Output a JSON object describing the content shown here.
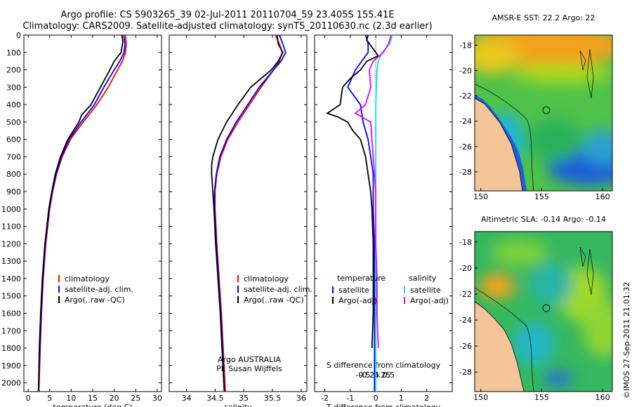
{
  "header": {
    "line1": "Argo profile: CS 5903265_39 02-Jul-2011 20110704_59 23.405S 155.41E",
    "line2": "Climatology: CARS2009. Satellite-adjusted climatology: synTS_20110630.nc (2.3d earlier)"
  },
  "colors": {
    "climatology": "#ff0000",
    "satellite": "#0000ff",
    "argo": "#000000",
    "sal_satellite": "#00e5ee",
    "sal_argo": "#ee00ee",
    "land": "#f5c59a"
  },
  "chart_data": [
    {
      "type": "line",
      "xlabel": "temperature (deg C)",
      "xlim": [
        -1,
        31
      ],
      "xticks": [
        0,
        5,
        10,
        15,
        20,
        25,
        30
      ],
      "ylim": [
        2050,
        0
      ],
      "yticks": [
        0,
        100,
        200,
        300,
        400,
        500,
        600,
        700,
        800,
        900,
        1000,
        1100,
        1200,
        1300,
        1400,
        1500,
        1600,
        1700,
        1800,
        1900,
        2000
      ],
      "legend": [
        "climatology",
        "satellite-adj. clim.",
        "Argo(..raw -QC)"
      ],
      "series": [
        {
          "name": "climatology",
          "color": "#ff0000",
          "y": [
            0,
            50,
            100,
            150,
            200,
            300,
            400,
            500,
            600,
            700,
            800,
            900,
            1000,
            1200,
            1400,
            1600,
            1800,
            2050
          ],
          "x": [
            22.6,
            22.8,
            22.6,
            21.9,
            20.8,
            18.6,
            16.0,
            12.8,
            9.8,
            7.9,
            6.6,
            5.7,
            5.0,
            4.1,
            3.5,
            3.1,
            2.8,
            2.5
          ]
        },
        {
          "name": "satellite-adj. clim.",
          "color": "#0000ff",
          "y": [
            0,
            50,
            100,
            150,
            200,
            300,
            400,
            500,
            600,
            700,
            800,
            900,
            1000,
            1200,
            1400,
            1600,
            1800,
            2050
          ],
          "x": [
            22.2,
            22.5,
            22.3,
            21.3,
            20.0,
            17.6,
            15.4,
            12.3,
            9.5,
            7.7,
            6.5,
            5.6,
            4.9,
            4.0,
            3.4,
            3.0,
            2.7,
            2.4
          ]
        },
        {
          "name": "Argo(..raw -QC)",
          "color": "#000000",
          "y": [
            0,
            40,
            100,
            150,
            200,
            300,
            400,
            460,
            500,
            600,
            700,
            800,
            900,
            1000,
            1200,
            1400,
            1600,
            1800,
            2050
          ],
          "x": [
            21.8,
            22.0,
            21.6,
            20.0,
            19.0,
            16.8,
            14.6,
            12.4,
            11.8,
            9.2,
            7.5,
            6.3,
            5.5,
            4.8,
            3.9,
            3.3,
            2.9,
            2.6,
            2.4
          ]
        }
      ]
    },
    {
      "type": "line",
      "xlabel": "salinity",
      "xlim": [
        33.7,
        36.1
      ],
      "xticks": [
        34,
        34.5,
        35,
        35.5,
        36
      ],
      "ylim": [
        2050,
        0
      ],
      "legend": [
        "climatology",
        "satellite-adj. clim.",
        "Argo(..raw -QC)"
      ],
      "annotation": [
        "Argo AUSTRALIA",
        "PI: Susan Wijffels"
      ],
      "series": [
        {
          "name": "climatology",
          "color": "#ff0000",
          "y": [
            0,
            50,
            100,
            150,
            200,
            300,
            400,
            500,
            600,
            700,
            800,
            900,
            1000,
            1200,
            1400,
            1600,
            1800,
            2050
          ],
          "x": [
            35.55,
            35.62,
            35.67,
            35.62,
            35.52,
            35.3,
            35.1,
            34.9,
            34.72,
            34.6,
            34.53,
            34.5,
            34.5,
            34.53,
            34.57,
            34.61,
            34.64,
            34.68
          ]
        },
        {
          "name": "satellite-adj. clim.",
          "color": "#0000ff",
          "y": [
            0,
            50,
            100,
            150,
            200,
            300,
            400,
            500,
            600,
            700,
            800,
            900,
            1000,
            1200,
            1400,
            1600,
            1800,
            2050
          ],
          "x": [
            35.62,
            35.68,
            35.73,
            35.65,
            35.52,
            35.27,
            35.07,
            34.87,
            34.7,
            34.58,
            34.52,
            34.49,
            34.49,
            34.52,
            34.56,
            34.6,
            34.63,
            34.66
          ]
        },
        {
          "name": "Argo(..raw -QC)",
          "color": "#000000",
          "y": [
            0,
            50,
            100,
            150,
            200,
            300,
            400,
            500,
            600,
            700,
            750,
            800,
            900,
            1000,
            1200,
            1400,
            1600,
            1800,
            2050
          ],
          "x": [
            35.58,
            35.6,
            35.68,
            35.6,
            35.48,
            35.12,
            34.9,
            34.7,
            34.55,
            34.46,
            34.44,
            34.44,
            34.46,
            34.48,
            34.51,
            34.55,
            34.59,
            34.62,
            34.66
          ]
        }
      ]
    },
    {
      "type": "line",
      "xlabel": "T difference from climatology",
      "x2label": "S difference from climatology",
      "xlim": [
        -2.4,
        3.0
      ],
      "xticks": [
        -2,
        -1,
        0,
        1,
        2
      ],
      "x2ticks": [
        -0.5,
        -0.25,
        0,
        0.25,
        0.5
      ],
      "ylim": [
        2050,
        0
      ],
      "legend_titles": [
        "temperature",
        "salinity"
      ],
      "legend": [
        "satellite",
        "Argo(-adj)",
        "satellite",
        "Argo(-adj)"
      ],
      "series": [
        {
          "name": "satellite",
          "color": "#0000ff",
          "y": [
            0,
            50,
            100,
            200,
            300,
            400,
            500,
            600,
            700,
            800,
            900,
            1000,
            1200,
            1400,
            1600,
            1800,
            2050
          ],
          "x": [
            -0.4,
            -0.3,
            -0.3,
            -0.8,
            -1.1,
            -0.6,
            -0.5,
            -0.3,
            -0.2,
            -0.1,
            -0.1,
            -0.1,
            -0.05,
            -0.05,
            -0.05,
            -0.05,
            -0.05
          ]
        },
        {
          "name": "Argo(-adj)",
          "color": "#000000",
          "y": [
            0,
            30,
            60,
            120,
            150,
            200,
            250,
            300,
            400,
            450,
            470,
            500,
            550,
            600,
            700,
            800,
            900,
            1000,
            1200,
            1400,
            1600,
            1800
          ],
          "x": [
            -0.3,
            -0.35,
            -0.2,
            0.1,
            -0.35,
            -0.6,
            -1.0,
            -1.3,
            -1.4,
            -1.9,
            -1.5,
            -1.1,
            -0.9,
            -0.6,
            -0.4,
            -0.3,
            -0.2,
            -0.15,
            -0.1,
            -0.1,
            -0.1,
            -0.15
          ]
        },
        {
          "name": "satellite",
          "color": "#00e5ee",
          "y": [
            0,
            50,
            100,
            150,
            200,
            400,
            600,
            800,
            1000,
            1200,
            1400,
            1600,
            1800,
            2050
          ],
          "x": [
            0.65,
            0.55,
            0.25,
            0.1,
            0.05,
            0,
            0,
            0,
            0,
            0,
            0,
            0,
            0,
            0
          ]
        },
        {
          "name": "Argo(-adj)",
          "color": "#ee00ee",
          "y": [
            0,
            50,
            100,
            150,
            200,
            300,
            400,
            450,
            500,
            600,
            700,
            800,
            900,
            1000,
            1200,
            1400,
            1600,
            1800
          ],
          "x": [
            0.6,
            0.5,
            0.3,
            -0.1,
            -0.25,
            -0.2,
            -0.4,
            -0.8,
            -0.2,
            -0.15,
            -0.1,
            -0.05,
            0,
            0,
            0,
            0.05,
            0.05,
            0.1
          ]
        }
      ]
    }
  ],
  "maps": [
    {
      "title": "AMSR-E SST: 22.2 Argo: 22",
      "xticks": [
        150,
        155,
        160
      ],
      "yticks": [
        -18,
        -20,
        -22,
        -24,
        -26,
        -28
      ]
    },
    {
      "title": "Altimetric SLA: -0.14 Argo: -0.14",
      "xticks": [
        150,
        155,
        160
      ],
      "yticks": [
        -18,
        -20,
        -22,
        -24,
        -26,
        -28
      ]
    }
  ],
  "side_stamp": "©IMOS 27-Sep-2011 21:01:32"
}
